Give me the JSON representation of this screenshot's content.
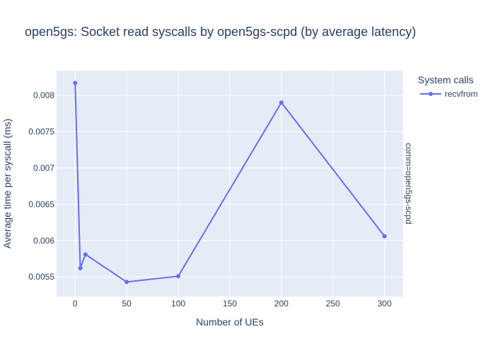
{
  "chart_data": {
    "type": "line",
    "title": "open5gs: Socket read syscalls by open5gs-scpd (by average latency)",
    "xlabel": "Number of UEs",
    "ylabel": "Average time per syscall (ms)",
    "facet_label": "comm=open5gs-scpd",
    "legend_title": "System calls",
    "legend_position": "top-right",
    "grid": true,
    "xlim": [
      -18,
      318
    ],
    "ylim": [
      0.00523,
      0.00834
    ],
    "xticks": [
      0,
      50,
      100,
      150,
      200,
      250,
      300
    ],
    "yticks": [
      0.0055,
      0.006,
      0.0065,
      0.007,
      0.0075,
      0.008
    ],
    "ytick_labels": [
      "0.0055",
      "0.006",
      "0.0065",
      "0.007",
      "0.0075",
      "0.008"
    ],
    "series": [
      {
        "name": "recvfrom",
        "color": "#636efa",
        "x": [
          0,
          5,
          10,
          50,
          100,
          200,
          300
        ],
        "y": [
          0.00817,
          0.00562,
          0.00581,
          0.00543,
          0.00551,
          0.0079,
          0.00606
        ]
      }
    ]
  },
  "colors": {
    "plot_background": "#e5ecf6",
    "grid": "#ffffff",
    "text": "#2a3f5f"
  }
}
